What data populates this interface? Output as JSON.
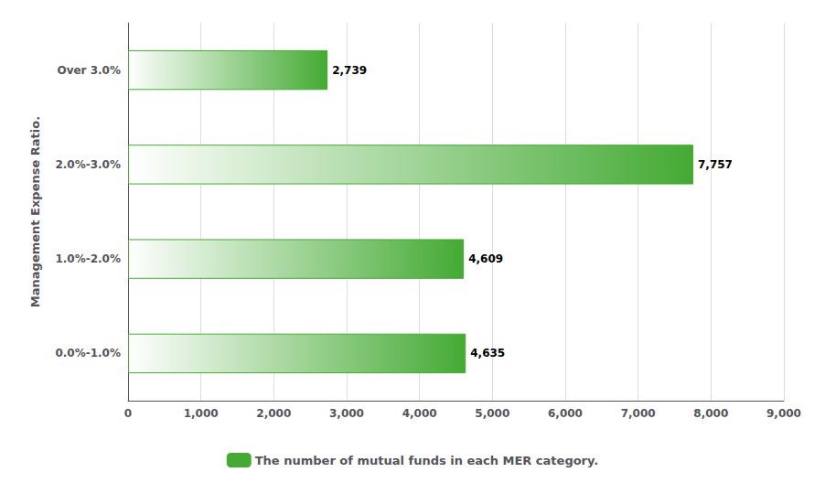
{
  "chart_data": {
    "type": "bar",
    "orientation": "horizontal",
    "ylabel": "Management Expense Ratio.",
    "categories": [
      "0.0%-1.0%",
      "1.0%-2.0%",
      "2.0%-3.0%",
      "Over 3.0%"
    ],
    "series": [
      {
        "name": "The number of mutual funds in each MER category.",
        "color": "#44aa33",
        "values": [
          4635,
          4609,
          7757,
          2739
        ],
        "value_labels": [
          "4,635",
          "4,609",
          "7,757",
          "2,739"
        ]
      }
    ],
    "data_labels": true,
    "xlim": [
      0,
      9000
    ],
    "xticks": [
      0,
      {
        "value": 1000,
        "label": "1,000"
      },
      {
        "value": 2000,
        "label": "2,000"
      },
      {
        "value": 3000,
        "label": "3,000"
      },
      {
        "value": 4000,
        "label": "4,000"
      },
      {
        "value": 5000,
        "label": "5,000"
      },
      {
        "value": 6000,
        "label": "6,000"
      },
      {
        "value": 7000,
        "label": "7,000"
      },
      {
        "value": 8000,
        "label": "8,000"
      },
      {
        "value": 9000,
        "label": "9,000"
      }
    ],
    "grid": true,
    "legend": "bottom"
  }
}
